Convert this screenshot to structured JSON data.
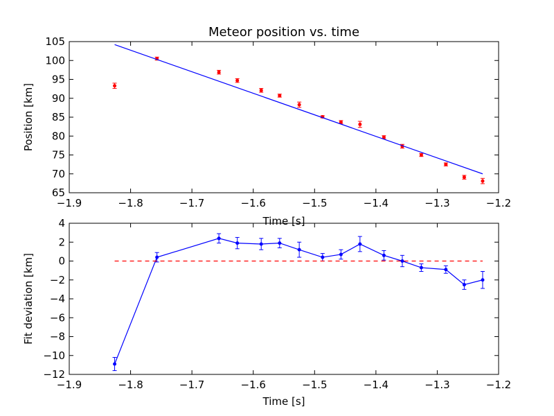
{
  "chart_data": [
    {
      "type": "scatter",
      "title": "Meteor position vs. time",
      "xlabel": "Time [s]",
      "ylabel": "Position [km]",
      "xlim": [
        -1.9,
        -1.2
      ],
      "ylim": [
        65,
        105
      ],
      "xticks": [
        -1.9,
        -1.8,
        -1.7,
        -1.6,
        -1.5,
        -1.4,
        -1.3,
        -1.2
      ],
      "yticks": [
        65,
        70,
        75,
        80,
        85,
        90,
        95,
        100,
        105
      ],
      "xtick_labels": [
        "−1.9",
        "−1.8",
        "−1.7",
        "−1.6",
        "−1.5",
        "−1.4",
        "−1.3",
        "−1.2"
      ],
      "ytick_labels": [
        "65",
        "70",
        "75",
        "80",
        "85",
        "90",
        "95",
        "100",
        "105"
      ],
      "grid": false,
      "series": [
        {
          "kind": "errorbar",
          "color": "#ff0000",
          "x": [
            -1.826,
            -1.757,
            -1.656,
            -1.626,
            -1.587,
            -1.557,
            -1.525,
            -1.487,
            -1.457,
            -1.426,
            -1.387,
            -1.357,
            -1.326,
            -1.286,
            -1.256,
            -1.226
          ],
          "y": [
            93.3,
            100.5,
            96.9,
            94.7,
            92.1,
            90.7,
            88.3,
            85.1,
            83.7,
            83.1,
            79.7,
            77.3,
            75.0,
            72.5,
            69.1,
            68.1
          ],
          "yerr": [
            0.7,
            0.4,
            0.5,
            0.5,
            0.5,
            0.4,
            0.7,
            0.3,
            0.4,
            0.8,
            0.4,
            0.5,
            0.4,
            0.4,
            0.5,
            0.7
          ]
        },
        {
          "kind": "line",
          "color": "#0000ff",
          "x": [
            -1.826,
            -1.226
          ],
          "y": [
            104.2,
            70.0
          ]
        }
      ]
    },
    {
      "type": "line",
      "title": "",
      "xlabel": "Time [s]",
      "ylabel": "Fit deviation [km]",
      "xlim": [
        -1.9,
        -1.2
      ],
      "ylim": [
        -12,
        4
      ],
      "xticks": [
        -1.9,
        -1.8,
        -1.7,
        -1.6,
        -1.5,
        -1.4,
        -1.3,
        -1.2
      ],
      "yticks": [
        -12,
        -10,
        -8,
        -6,
        -4,
        -2,
        0,
        2,
        4
      ],
      "xtick_labels": [
        "−1.9",
        "−1.8",
        "−1.7",
        "−1.6",
        "−1.5",
        "−1.4",
        "−1.3",
        "−1.2"
      ],
      "ytick_labels": [
        "−12",
        "−10",
        "−8",
        "−6",
        "−4",
        "−2",
        "0",
        "2",
        "4"
      ],
      "grid": false,
      "series": [
        {
          "kind": "errorbar-line",
          "color": "#0000ff",
          "x": [
            -1.826,
            -1.757,
            -1.656,
            -1.626,
            -1.587,
            -1.557,
            -1.525,
            -1.487,
            -1.457,
            -1.426,
            -1.387,
            -1.357,
            -1.326,
            -1.286,
            -1.256,
            -1.226
          ],
          "y": [
            -10.9,
            0.4,
            2.4,
            1.9,
            1.8,
            1.9,
            1.2,
            0.4,
            0.7,
            1.8,
            0.6,
            0.0,
            -0.7,
            -0.9,
            -2.5,
            -2.0
          ],
          "yerr": [
            0.7,
            0.5,
            0.5,
            0.6,
            0.6,
            0.5,
            0.8,
            0.4,
            0.5,
            0.8,
            0.5,
            0.6,
            0.4,
            0.4,
            0.5,
            0.9
          ]
        },
        {
          "kind": "dashed-line",
          "color": "#ff0000",
          "x": [
            -1.826,
            -1.226
          ],
          "y": [
            0,
            0
          ]
        }
      ]
    }
  ]
}
